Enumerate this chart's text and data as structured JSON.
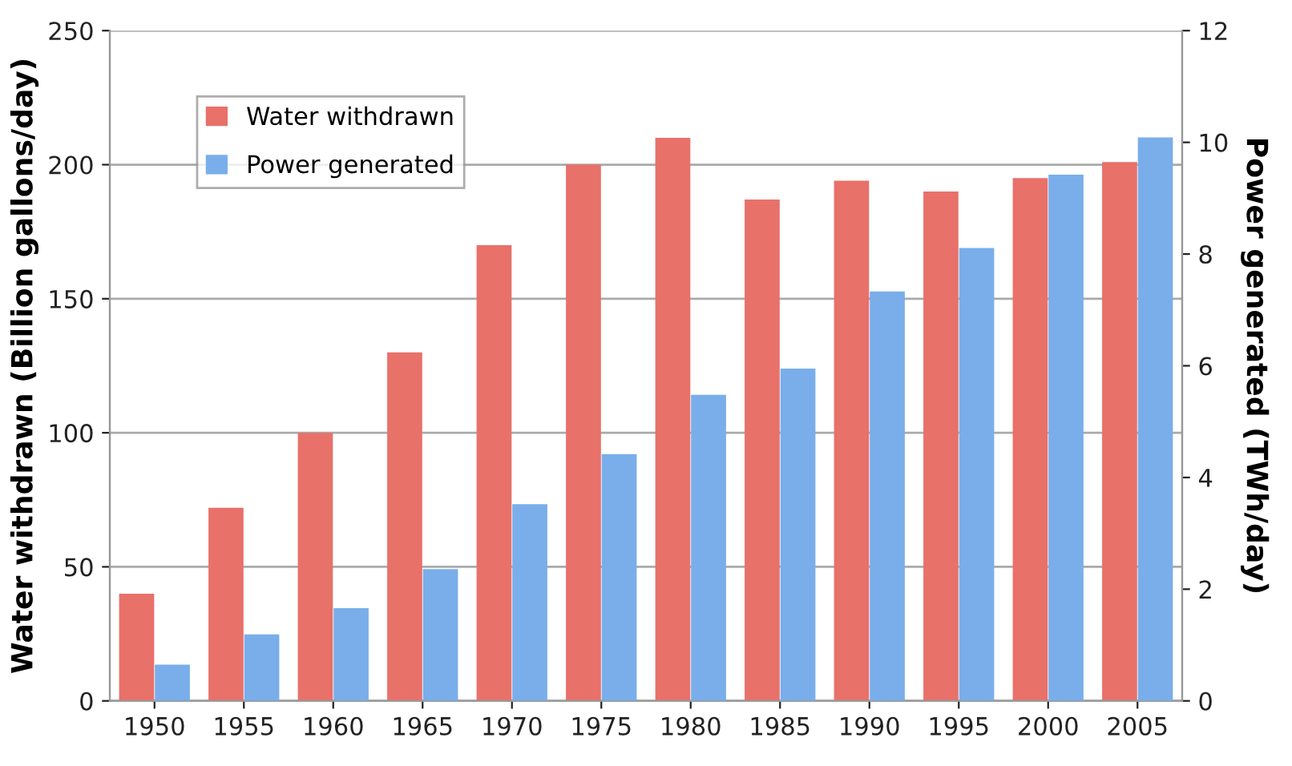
{
  "chart_data": {
    "type": "bar",
    "categories": [
      "1950",
      "1955",
      "1960",
      "1965",
      "1970",
      "1975",
      "1980",
      "1985",
      "1990",
      "1995",
      "2000",
      "2005"
    ],
    "ylabel": "Water withdrawn (Billion gallons/day)",
    "y2label": "Power generated (TWh/day)",
    "ylim": [
      0,
      250
    ],
    "yticks": [
      0,
      50,
      100,
      150,
      200,
      250
    ],
    "y2lim": [
      0,
      12
    ],
    "y2ticks": [
      0,
      2,
      4,
      6,
      8,
      10,
      12
    ],
    "grid": "y",
    "legend": "top left",
    "series": [
      {
        "name": "Water withdrawn",
        "color": "#e8716a",
        "values": [
          40,
          72,
          100,
          130,
          170,
          200,
          210,
          187,
          194,
          190,
          195,
          201
        ]
      },
      {
        "name": "Power generated",
        "color": "#7aaeea",
        "axis": "y2",
        "values": [
          0.65,
          1.19,
          1.66,
          2.36,
          3.52,
          4.42,
          5.48,
          5.95,
          7.33,
          8.11,
          9.42,
          10.09
        ]
      }
    ]
  }
}
